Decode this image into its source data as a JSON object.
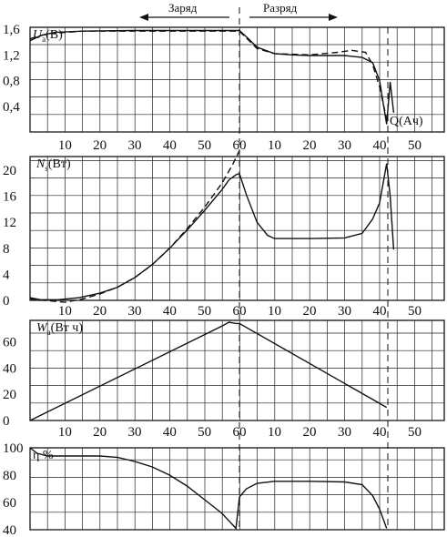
{
  "header": {
    "charge_label": "Заряд",
    "discharge_label": "Разряд"
  },
  "chart_data": [
    {
      "type": "line",
      "ylabel_main": "U",
      "ylabel_sub": "a",
      "ylabel_unit": "(B)",
      "xlabel": "Q(Ач)",
      "yticks": [
        "0,4",
        "0,8",
        "1,2",
        "1,6"
      ],
      "xticks": [
        "10",
        "20",
        "30",
        "40",
        "50",
        "60",
        "10",
        "20",
        "30",
        "40",
        "50"
      ],
      "ylim": [
        0,
        1.8
      ],
      "series": [
        {
          "style": "solid",
          "charge": [
            [
              0,
              1.42
            ],
            [
              3,
              1.5
            ],
            [
              7,
              1.55
            ],
            [
              15,
              1.57
            ],
            [
              30,
              1.58
            ],
            [
              50,
              1.58
            ],
            [
              59,
              1.58
            ]
          ],
          "discharge": [
            [
              0,
              1.58
            ],
            [
              2,
              1.48
            ],
            [
              5,
              1.32
            ],
            [
              10,
              1.22
            ],
            [
              15,
              1.2
            ],
            [
              20,
              1.19
            ],
            [
              30,
              1.19
            ],
            [
              35,
              1.16
            ],
            [
              38,
              1.08
            ],
            [
              40,
              0.8
            ],
            [
              41,
              0.45
            ],
            [
              42,
              0.12
            ],
            [
              43,
              0.78
            ],
            [
              44,
              0.3
            ]
          ]
        },
        {
          "style": "dashed",
          "charge": [
            [
              0,
              1.45
            ],
            [
              5,
              1.53
            ],
            [
              15,
              1.57
            ],
            [
              30,
              1.57
            ],
            [
              50,
              1.57
            ],
            [
              59,
              1.57
            ]
          ],
          "discharge": [
            [
              0,
              1.57
            ],
            [
              2,
              1.46
            ],
            [
              5,
              1.3
            ],
            [
              10,
              1.22
            ],
            [
              20,
              1.2
            ],
            [
              28,
              1.24
            ],
            [
              32,
              1.27
            ],
            [
              36,
              1.24
            ],
            [
              38,
              1.05
            ],
            [
              40,
              0.7
            ],
            [
              42,
              0.2
            ]
          ]
        }
      ]
    },
    {
      "type": "line",
      "ylabel_main": "N",
      "ylabel_sub": "s",
      "ylabel_unit": "(Вт)",
      "yticks": [
        "0",
        "4",
        "8",
        "12",
        "16",
        "20"
      ],
      "xticks": [
        "10",
        "20",
        "30",
        "40",
        "50",
        "60",
        "10",
        "20",
        "30",
        "40",
        "50"
      ],
      "ylim": [
        0,
        22
      ],
      "series": [
        {
          "style": "solid",
          "charge": [
            [
              0,
              0.4
            ],
            [
              3,
              0.1
            ],
            [
              8,
              0.1
            ],
            [
              14,
              0.4
            ],
            [
              20,
              1.1
            ],
            [
              25,
              2.0
            ],
            [
              30,
              3.5
            ],
            [
              35,
              5.5
            ],
            [
              40,
              8.0
            ],
            [
              45,
              10.8
            ],
            [
              50,
              13.8
            ],
            [
              55,
              17.0
            ],
            [
              57,
              18.5
            ],
            [
              59,
              19.3
            ]
          ],
          "discharge": [
            [
              0,
              19.5
            ],
            [
              2,
              16.2
            ],
            [
              5,
              12.0
            ],
            [
              8,
              10.0
            ],
            [
              10,
              9.5
            ],
            [
              20,
              9.5
            ],
            [
              30,
              9.6
            ],
            [
              35,
              10.3
            ],
            [
              38,
              12.5
            ],
            [
              40,
              15.0
            ],
            [
              42,
              21.0
            ],
            [
              43,
              16.0
            ],
            [
              44,
              7.8
            ]
          ]
        },
        {
          "style": "dashed",
          "charge": [
            [
              0,
              0.2
            ],
            [
              10,
              -0.3
            ],
            [
              15,
              0.2
            ],
            [
              20,
              1.0
            ],
            [
              25,
              2.0
            ],
            [
              30,
              3.5
            ],
            [
              35,
              5.5
            ],
            [
              40,
              8.0
            ],
            [
              45,
              11.0
            ],
            [
              50,
              14.3
            ],
            [
              55,
              18.0
            ],
            [
              58,
              20.8
            ],
            [
              60,
              23.0
            ]
          ],
          "discharge": []
        }
      ]
    },
    {
      "type": "line",
      "ylabel_main": "W",
      "ylabel_sub": "a",
      "ylabel_unit": "(Вт ч)",
      "yticks": [
        "0",
        "20",
        "40",
        "60"
      ],
      "xticks": [
        "10",
        "20",
        "30",
        "40",
        "50",
        "60",
        "10",
        "20",
        "30",
        "40",
        "50"
      ],
      "ylim": [
        0,
        77
      ],
      "series": [
        {
          "style": "solid",
          "charge": [
            [
              0,
              0
            ],
            [
              55,
              72
            ],
            [
              57,
              75
            ],
            [
              59,
              74
            ]
          ],
          "discharge": [
            [
              0,
              74
            ],
            [
              42,
              10
            ]
          ]
        }
      ]
    },
    {
      "type": "line",
      "ylabel_main": "η %",
      "ylabel_sub": "",
      "ylabel_unit": "",
      "yticks": [
        "40",
        "60",
        "80",
        "100"
      ],
      "ylim": [
        40,
        100
      ],
      "series": [
        {
          "style": "solid",
          "charge": [
            [
              0,
              100
            ],
            [
              2,
              96
            ],
            [
              5,
              94
            ],
            [
              10,
              94
            ],
            [
              20,
              94
            ],
            [
              25,
              93
            ],
            [
              30,
              90
            ],
            [
              35,
              86
            ],
            [
              40,
              80
            ],
            [
              45,
              72
            ],
            [
              50,
              62
            ],
            [
              55,
              52
            ],
            [
              59,
              41
            ]
          ],
          "discharge": [
            [
              0,
              64
            ],
            [
              2,
              70
            ],
            [
              5,
              74
            ],
            [
              10,
              75.5
            ],
            [
              20,
              75.5
            ],
            [
              30,
              75
            ],
            [
              35,
              73
            ],
            [
              38,
              65
            ],
            [
              40,
              55
            ],
            [
              42,
              41
            ]
          ]
        }
      ]
    }
  ]
}
